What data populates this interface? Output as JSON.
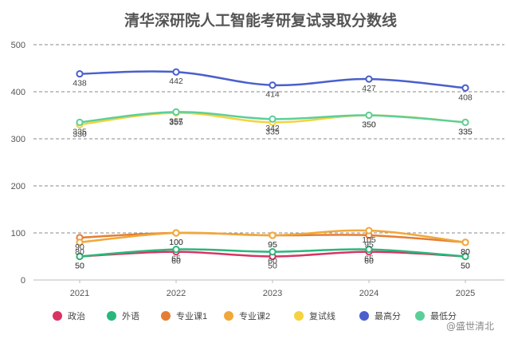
{
  "chart_data": {
    "type": "line",
    "title": "清华深研院人工智能考研复试录取分数线",
    "categories": [
      "2021",
      "2022",
      "2023",
      "2024",
      "2025"
    ],
    "ylim": [
      0,
      500
    ],
    "yticks": [
      0,
      100,
      200,
      300,
      400,
      500
    ],
    "grid": true,
    "legend_position": "bottom",
    "series": [
      {
        "name": "政治",
        "color": "#d93363",
        "values": [
          50,
          60,
          50,
          60,
          50
        ]
      },
      {
        "name": "外语",
        "color": "#29b77b",
        "values": [
          50,
          65,
          60,
          65,
          50
        ]
      },
      {
        "name": "专业课1",
        "color": "#e57e33",
        "values": [
          90,
          100,
          95,
          95,
          80
        ]
      },
      {
        "name": "专业课2",
        "color": "#f0a83a",
        "values": [
          80,
          100,
          95,
          105,
          80
        ]
      },
      {
        "name": "复试线",
        "color": "#f5d33f",
        "values": [
          330,
          355,
          335,
          350,
          335
        ]
      },
      {
        "name": "最高分",
        "color": "#4a5fcc",
        "values": [
          438,
          442,
          414,
          427,
          408
        ]
      },
      {
        "name": "最低分",
        "color": "#5ccf98",
        "values": [
          335,
          357,
          342,
          350,
          335
        ]
      }
    ]
  },
  "watermark": "@盛世清北"
}
